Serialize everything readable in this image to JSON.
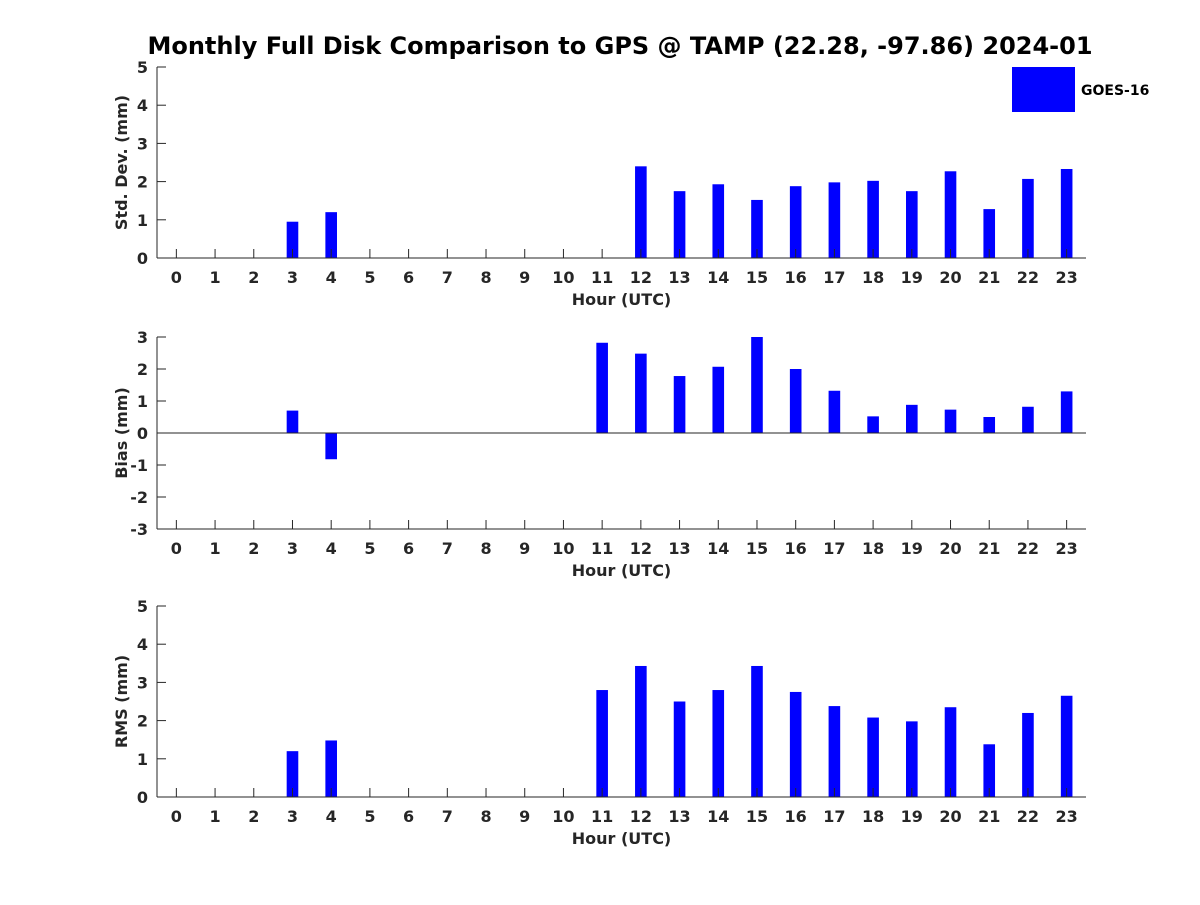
{
  "title": "Monthly Full Disk Comparison to GPS @ TAMP (22.28, -97.86) 2024-01",
  "colors": {
    "bar": "#0000ff",
    "axis": "#262626",
    "background": "#ffffff"
  },
  "chart_data": [
    {
      "type": "bar",
      "ylabel": "Std. Dev. (mm)",
      "xlabel": "Hour (UTC)",
      "ylim": [
        0,
        5
      ],
      "yticks": [
        0,
        1,
        2,
        3,
        4,
        5
      ],
      "xlim": [
        -0.5,
        23.5
      ],
      "categories": [
        "0",
        "1",
        "2",
        "3",
        "4",
        "5",
        "6",
        "7",
        "8",
        "9",
        "10",
        "11",
        "12",
        "13",
        "14",
        "15",
        "16",
        "17",
        "18",
        "19",
        "20",
        "21",
        "22",
        "23"
      ],
      "legend": {
        "label": "GOES-16",
        "placement": "top-right"
      },
      "grid": false,
      "series": [
        {
          "name": "GOES-16",
          "values": [
            null,
            null,
            null,
            0.95,
            1.2,
            null,
            null,
            null,
            null,
            null,
            null,
            null,
            2.4,
            1.75,
            1.93,
            1.52,
            1.88,
            1.98,
            2.02,
            1.75,
            2.27,
            1.28,
            2.07,
            2.33
          ]
        }
      ]
    },
    {
      "type": "bar",
      "ylabel": "Bias (mm)",
      "xlabel": "Hour (UTC)",
      "ylim": [
        -3,
        3
      ],
      "yticks": [
        -3,
        -2,
        -1,
        0,
        1,
        2,
        3
      ],
      "xlim": [
        -0.5,
        23.5
      ],
      "categories": [
        "0",
        "1",
        "2",
        "3",
        "4",
        "5",
        "6",
        "7",
        "8",
        "9",
        "10",
        "11",
        "12",
        "13",
        "14",
        "15",
        "16",
        "17",
        "18",
        "19",
        "20",
        "21",
        "22",
        "23"
      ],
      "zero_line": true,
      "grid": false,
      "series": [
        {
          "name": "GOES-16",
          "values": [
            null,
            null,
            null,
            0.7,
            -0.82,
            null,
            null,
            null,
            null,
            null,
            null,
            2.82,
            2.48,
            1.78,
            2.07,
            3.0,
            2.0,
            1.32,
            0.52,
            0.88,
            0.73,
            0.5,
            0.82,
            1.3
          ]
        }
      ]
    },
    {
      "type": "bar",
      "ylabel": "RMS (mm)",
      "xlabel": "Hour (UTC)",
      "ylim": [
        0,
        5
      ],
      "yticks": [
        0,
        1,
        2,
        3,
        4,
        5
      ],
      "xlim": [
        -0.5,
        23.5
      ],
      "categories": [
        "0",
        "1",
        "2",
        "3",
        "4",
        "5",
        "6",
        "7",
        "8",
        "9",
        "10",
        "11",
        "12",
        "13",
        "14",
        "15",
        "16",
        "17",
        "18",
        "19",
        "20",
        "21",
        "22",
        "23"
      ],
      "grid": false,
      "series": [
        {
          "name": "GOES-16",
          "values": [
            null,
            null,
            null,
            1.2,
            1.48,
            null,
            null,
            null,
            null,
            null,
            null,
            2.8,
            3.43,
            2.5,
            2.8,
            3.43,
            2.75,
            2.38,
            2.08,
            1.98,
            2.35,
            1.38,
            2.2,
            2.65
          ]
        }
      ]
    }
  ]
}
